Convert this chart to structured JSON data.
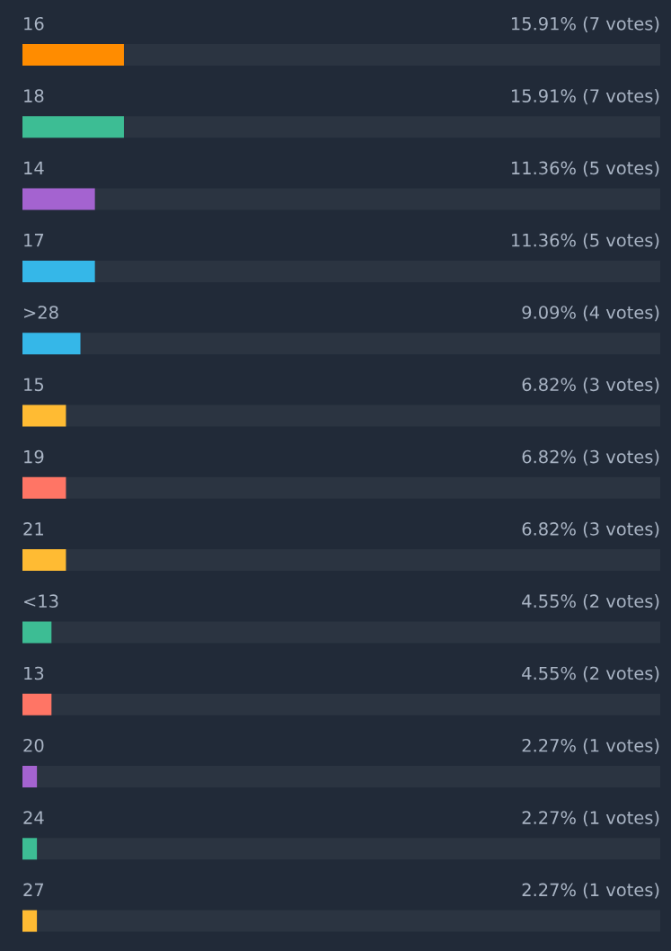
{
  "chart_data": {
    "type": "bar",
    "orientation": "horizontal",
    "categories": [
      "16",
      "18",
      "14",
      "17",
      ">28",
      "15",
      "19",
      "21",
      "<13",
      "13",
      "20",
      "24",
      "27"
    ],
    "values": [
      15.91,
      15.91,
      11.36,
      11.36,
      9.09,
      6.82,
      6.82,
      6.82,
      4.55,
      4.55,
      2.27,
      2.27,
      2.27
    ],
    "colors": [
      "#ff8c00",
      "#3dbd94",
      "#a463d0",
      "#35b7e8",
      "#35b7e8",
      "#ffbb33",
      "#ff7565",
      "#ffbb33",
      "#3dbd94",
      "#ff7565",
      "#a463d0",
      "#3dbd94",
      "#ffbb33"
    ],
    "value_labels": [
      "15.91% (7 votes)",
      "15.91% (7 votes)",
      "11.36% (5 votes)",
      "11.36% (5 votes)",
      "9.09% (4 votes)",
      "6.82% (3 votes)",
      "6.82% (3 votes)",
      "6.82% (3 votes)",
      "4.55% (2 votes)",
      "4.55% (2 votes)",
      "2.27% (1 votes)",
      "2.27% (1 votes)",
      "2.27% (1 votes)"
    ],
    "xlim": [
      0,
      100
    ]
  }
}
